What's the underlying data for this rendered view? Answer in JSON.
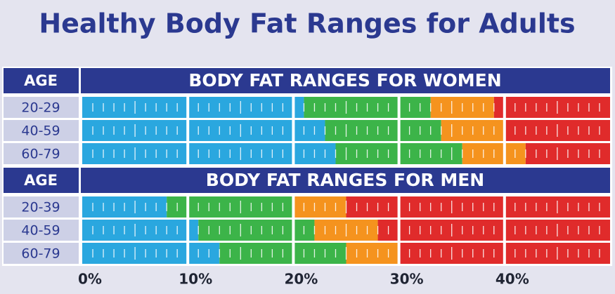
{
  "chart_data": {
    "type": "stacked-range",
    "title": "Healthy Body Fat Ranges for Adults",
    "xlim": [
      0,
      50
    ],
    "xticks": [
      {
        "value": 0,
        "label": "0%"
      },
      {
        "value": 10,
        "label": "10%"
      },
      {
        "value": 20,
        "label": "20%"
      },
      {
        "value": 30,
        "label": "30%"
      },
      {
        "value": 40,
        "label": "40%"
      }
    ],
    "groups": [
      {
        "header": "AGE",
        "title": "BODY FAT RANGES FOR WOMEN",
        "categories": [
          "20-29",
          "40-59",
          "60-79"
        ],
        "series": [
          {
            "color": "#2aa7df",
            "values": [
              21,
              23,
              24
            ]
          },
          {
            "color": "#3cb449",
            "values": [
              12,
              11,
              12
            ]
          },
          {
            "color": "#f5931e",
            "values": [
              6,
              6,
              6
            ]
          },
          {
            "color": "#e02b2b",
            "values": [
              11,
              10,
              8
            ]
          }
        ]
      },
      {
        "header": "AGE",
        "title": "BODY FAT RANGES FOR MEN",
        "categories": [
          "20-39",
          "40-59",
          "60-79"
        ],
        "series": [
          {
            "color": "#2aa7df",
            "values": [
              8,
              11,
              13
            ]
          },
          {
            "color": "#3cb449",
            "values": [
              12,
              11,
              12
            ]
          },
          {
            "color": "#f5931e",
            "values": [
              5,
              6,
              5
            ]
          },
          {
            "color": "#e02b2b",
            "values": [
              25,
              22,
              20
            ]
          }
        ]
      }
    ]
  }
}
